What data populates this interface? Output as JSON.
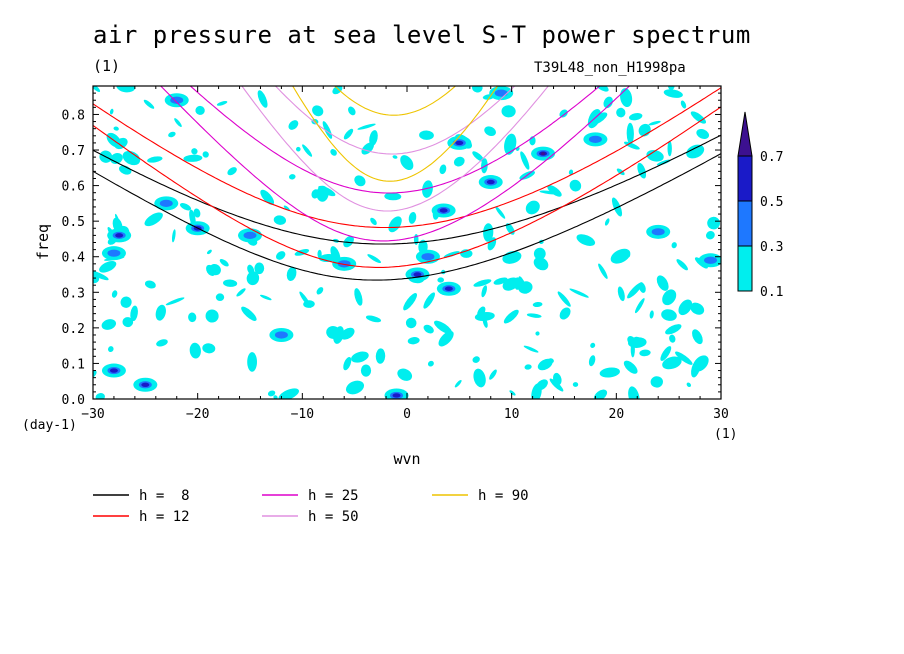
{
  "title": "air pressure at sea level S-T power spectrum",
  "title_unit": "(1)",
  "run_id": "T39L48_non_H1998pa",
  "chart_data": {
    "type": "contour",
    "xlabel": "wvn",
    "ylabel": "freq",
    "x_unit": "(1)",
    "y_unit": "(day-1)",
    "xlim": [
      -30,
      30
    ],
    "ylim": [
      0.0,
      0.88
    ],
    "x_ticks": [
      -30,
      -20,
      -10,
      0,
      10,
      20,
      30
    ],
    "y_ticks": [
      0.0,
      0.1,
      0.2,
      0.3,
      0.4,
      0.5,
      0.6,
      0.7,
      0.8
    ],
    "colorbar": {
      "levels": [
        0.1,
        0.3,
        0.5,
        0.7
      ],
      "labels": [
        "0.1",
        "0.3",
        "0.5",
        "0.7"
      ],
      "colors": [
        "#00eeee",
        "#1e78ff",
        "#1a1ac8",
        "#3c1090"
      ],
      "extend": "max"
    },
    "curve_legend": [
      {
        "label": "h =  8",
        "h": 8,
        "color": "#000000"
      },
      {
        "label": "h = 12",
        "h": 12,
        "color": "#ff0000"
      },
      {
        "label": "h = 25",
        "h": 25,
        "color": "#dd00cc"
      },
      {
        "label": "h = 50",
        "h": 50,
        "color": "#e091e0"
      },
      {
        "label": "h = 90",
        "h": 90,
        "color": "#eec400"
      }
    ],
    "contour_patches": [
      {
        "x": -28,
        "y": 0.08,
        "level": 0.5
      },
      {
        "x": -25,
        "y": 0.04,
        "level": 0.5
      },
      {
        "x": -27.5,
        "y": 0.46,
        "level": 0.5
      },
      {
        "x": -28,
        "y": 0.41,
        "level": 0.3
      },
      {
        "x": -23,
        "y": 0.55,
        "level": 0.3
      },
      {
        "x": -22,
        "y": 0.84,
        "level": 0.3
      },
      {
        "x": -20,
        "y": 0.48,
        "level": 0.5
      },
      {
        "x": -15,
        "y": 0.46,
        "level": 0.3
      },
      {
        "x": -12,
        "y": 0.18,
        "level": 0.3
      },
      {
        "x": -6,
        "y": 0.38,
        "level": 0.3
      },
      {
        "x": -1,
        "y": 0.01,
        "level": 0.5
      },
      {
        "x": 1,
        "y": 0.35,
        "level": 0.5
      },
      {
        "x": 2,
        "y": 0.4,
        "level": 0.3
      },
      {
        "x": 3.5,
        "y": 0.53,
        "level": 0.5
      },
      {
        "x": 4,
        "y": 0.31,
        "level": 0.5
      },
      {
        "x": 5,
        "y": 0.72,
        "level": 0.5
      },
      {
        "x": 8,
        "y": 0.61,
        "level": 0.5
      },
      {
        "x": 13,
        "y": 0.69,
        "level": 0.7
      },
      {
        "x": 24,
        "y": 0.47,
        "level": 0.3
      },
      {
        "x": 29,
        "y": 0.39,
        "level": 0.3
      },
      {
        "x": 9,
        "y": 0.86,
        "level": 0.3
      },
      {
        "x": 18,
        "y": 0.73,
        "level": 0.3
      }
    ]
  }
}
